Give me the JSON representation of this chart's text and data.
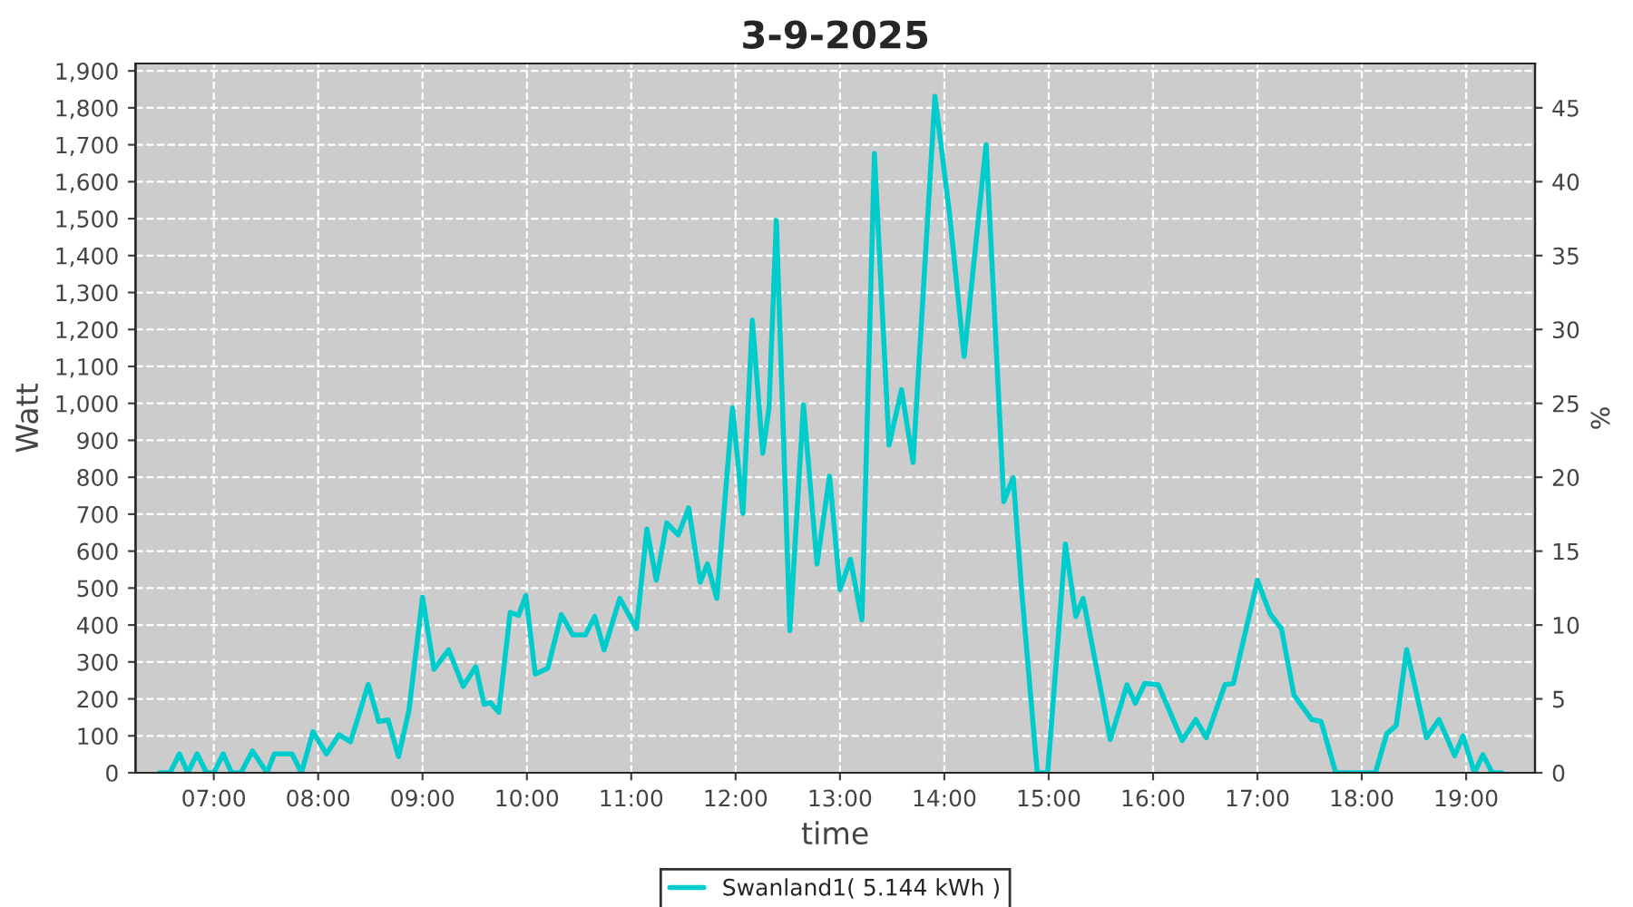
{
  "chart_data": {
    "type": "line",
    "title": "3-9-2025",
    "xlabel": "time",
    "ylabel": "Watt",
    "y2label": "%",
    "xlim": [
      6.25,
      19.66
    ],
    "xticks": [
      {
        "value": 7,
        "label": "07:00"
      },
      {
        "value": 8,
        "label": "08:00"
      },
      {
        "value": 9,
        "label": "09:00"
      },
      {
        "value": 10,
        "label": "10:00"
      },
      {
        "value": 11,
        "label": "11:00"
      },
      {
        "value": 12,
        "label": "12:00"
      },
      {
        "value": 13,
        "label": "13:00"
      },
      {
        "value": 14,
        "label": "14:00"
      },
      {
        "value": 15,
        "label": "15:00"
      },
      {
        "value": 16,
        "label": "16:00"
      },
      {
        "value": 17,
        "label": "17:00"
      },
      {
        "value": 18,
        "label": "18:00"
      },
      {
        "value": 19,
        "label": "19:00"
      }
    ],
    "ylim": [
      0,
      1920
    ],
    "yticks": [
      0,
      100,
      200,
      300,
      400,
      500,
      600,
      700,
      800,
      900,
      {
        "value": 1000,
        "label": "1,000"
      },
      {
        "value": 1100,
        "label": "1,100"
      },
      {
        "value": 1200,
        "label": "1,200"
      },
      {
        "value": 1300,
        "label": "1,300"
      },
      {
        "value": 1400,
        "label": "1,400"
      },
      {
        "value": 1500,
        "label": "1,500"
      },
      {
        "value": 1600,
        "label": "1,600"
      },
      {
        "value": 1700,
        "label": "1,700"
      },
      {
        "value": 1800,
        "label": "1,800"
      },
      {
        "value": 1900,
        "label": "1,900"
      }
    ],
    "y2lim": [
      0,
      48
    ],
    "y2ticks": [
      0,
      5,
      10,
      15,
      20,
      25,
      30,
      35,
      40,
      45
    ],
    "grid": true,
    "legend": "bottom",
    "marker": "none",
    "line_style": "solid",
    "series": [
      {
        "name": "Swanland1( 5.144 kWh )",
        "color": "#00cccc",
        "x": [
          6.48,
          6.58,
          6.67,
          6.75,
          6.84,
          6.93,
          7.0,
          7.09,
          7.17,
          7.26,
          7.37,
          7.51,
          7.58,
          7.75,
          7.84,
          7.95,
          8.08,
          8.2,
          8.31,
          8.48,
          8.58,
          8.67,
          8.77,
          8.87,
          9.0,
          9.11,
          9.25,
          9.39,
          9.51,
          9.59,
          9.65,
          9.73,
          9.84,
          9.92,
          9.99,
          10.08,
          10.2,
          10.33,
          10.44,
          10.56,
          10.65,
          10.74,
          10.89,
          11.05,
          11.15,
          11.24,
          11.34,
          11.45,
          11.55,
          11.66,
          11.73,
          11.82,
          11.97,
          12.07,
          12.16,
          12.26,
          12.32,
          12.39,
          12.52,
          12.65,
          12.78,
          12.9,
          13.0,
          13.1,
          13.21,
          13.33,
          13.47,
          13.59,
          13.7,
          13.91,
          14.05,
          14.19,
          14.4,
          14.57,
          14.66,
          14.74,
          14.89,
          14.99,
          15.16,
          15.26,
          15.33,
          15.59,
          15.75,
          15.83,
          15.92,
          16.05,
          16.28,
          16.41,
          16.51,
          16.69,
          16.77,
          17.0,
          17.12,
          17.23,
          17.35,
          17.52,
          17.61,
          17.75,
          18.01,
          18.13,
          18.24,
          18.33,
          18.43,
          18.62,
          18.74,
          18.89,
          18.97,
          19.08,
          19.16,
          19.25,
          19.34
        ],
        "values": [
          0,
          0,
          51,
          0,
          51,
          0,
          0,
          51,
          0,
          0,
          59,
          0,
          51,
          51,
          0,
          111,
          51,
          103,
          84,
          239,
          139,
          143,
          44,
          169,
          475,
          280,
          333,
          234,
          287,
          185,
          190,
          164,
          434,
          426,
          480,
          267,
          283,
          428,
          373,
          373,
          423,
          333,
          472,
          390,
          660,
          521,
          676,
          644,
          717,
          516,
          565,
          472,
          988,
          702,
          1225,
          865,
          988,
          1495,
          385,
          996,
          565,
          803,
          496,
          578,
          414,
          1676,
          887,
          1037,
          840,
          1831,
          1512,
          1127,
          1700,
          734,
          799,
          496,
          0,
          0,
          619,
          423,
          472,
          90,
          238,
          188,
          242,
          238,
          87,
          144,
          95,
          239,
          242,
          521,
          431,
          390,
          210,
          144,
          139,
          0,
          0,
          0,
          106,
          128,
          333,
          95,
          144,
          46,
          100,
          0,
          49,
          0,
          0
        ]
      }
    ]
  }
}
